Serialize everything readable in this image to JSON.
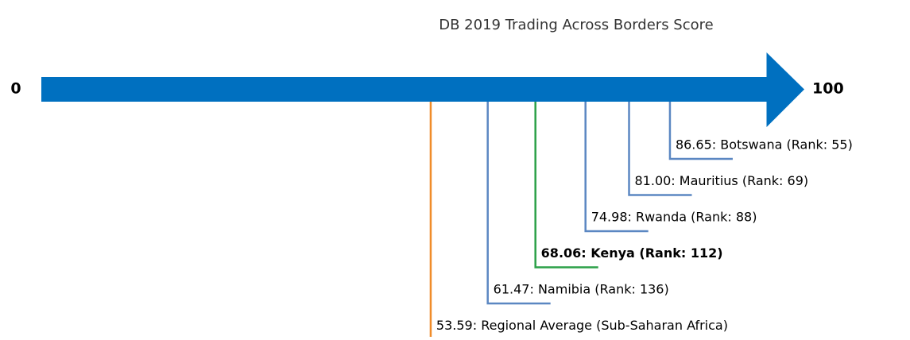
{
  "chart_data": {
    "type": "scale",
    "title": "DB 2019 Trading Across Borders Score",
    "xlim": [
      0,
      100
    ],
    "xticks": [
      0,
      100
    ],
    "axis_color": "#0070c0",
    "values": [
      86.65,
      81.0,
      74.98,
      68.06,
      61.47,
      53.59
    ],
    "value_labels": [
      "86.65: Botswana (Rank: 55)",
      "81.00: Mauritius (Rank: 69)",
      "74.98: Rwanda (Rank: 88)",
      "68.06: Kenya (Rank: 112)",
      "61.47: Namibia (Rank: 136)",
      "53.59: Regional Average (Sub-Saharan Africa)"
    ],
    "colors": [
      "#5b87c2",
      "#5b87c2",
      "#5b87c2",
      "#2ca048",
      "#5b87c2",
      "#f08c2a"
    ],
    "bold": [
      false,
      false,
      false,
      true,
      false,
      false
    ]
  }
}
